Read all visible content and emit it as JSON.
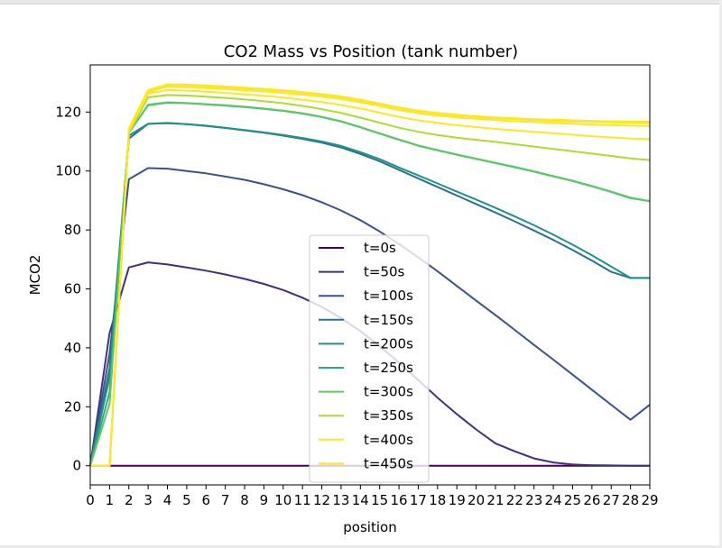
{
  "chart_data": {
    "type": "line",
    "title": "CO2 Mass vs Position (tank number)",
    "xlabel": "position",
    "ylabel": "MCO2",
    "xlim": [
      0,
      29
    ],
    "ylim": [
      -6.5,
      136
    ],
    "x": [
      0,
      1,
      2,
      3,
      4,
      5,
      6,
      7,
      8,
      9,
      10,
      11,
      12,
      13,
      14,
      15,
      16,
      17,
      18,
      19,
      20,
      21,
      22,
      23,
      24,
      25,
      26,
      27,
      28,
      29
    ],
    "x_tick_labels": [
      "0",
      "1",
      "2",
      "3",
      "4",
      "5",
      "6",
      "7",
      "8",
      "9",
      "10",
      "11",
      "12",
      "13",
      "14",
      "15",
      "16",
      "17",
      "18",
      "19",
      "20",
      "21",
      "22",
      "23",
      "24",
      "25",
      "26",
      "27",
      "28",
      "29"
    ],
    "y_ticks": [
      0,
      20,
      40,
      60,
      80,
      100,
      120
    ],
    "grid": false,
    "legend_placement": "lower center",
    "series": [
      {
        "name": "t=0s",
        "color": "#440154",
        "values": [
          0,
          0,
          0,
          0,
          0,
          0,
          0,
          0,
          0,
          0,
          0,
          0,
          0,
          0,
          0,
          0,
          0,
          0,
          0,
          0,
          0,
          0,
          0,
          0,
          0,
          0,
          0,
          0,
          0,
          0
        ]
      },
      {
        "name": "t=50s",
        "color": "#472d7b",
        "values": [
          0,
          45,
          67.3,
          69,
          68.3,
          67.3,
          66.2,
          64.9,
          63.4,
          61.7,
          59.6,
          57,
          53.9,
          50.1,
          45.7,
          40.6,
          35,
          29.1,
          23.1,
          17.5,
          12.3,
          7.6,
          4.9,
          2.5,
          1.1,
          0.4,
          0.2,
          0.1,
          0,
          0
        ]
      },
      {
        "name": "t=100s",
        "color": "#3b528b",
        "values": [
          0,
          38,
          97.2,
          101,
          100.8,
          100,
          99.2,
          98.1,
          97,
          95.5,
          93.8,
          91.8,
          89.4,
          86.6,
          83.3,
          79.5,
          75.2,
          70.7,
          66,
          61,
          56,
          51.1,
          46.1,
          41,
          36,
          30.9,
          25.8,
          20.7,
          15.6,
          20.7
        ]
      },
      {
        "name": "t=150s",
        "color": "#2c728e",
        "values": [
          0,
          33,
          111,
          116,
          116.3,
          115.9,
          115.3,
          114.6,
          113.8,
          113,
          112,
          110.9,
          109.6,
          108,
          105.8,
          103.3,
          100.4,
          97.5,
          94.6,
          91.7,
          88.8,
          85.9,
          82.9,
          79.8,
          76.6,
          73.2,
          69.6,
          65.8,
          63.7,
          63.7
        ]
      },
      {
        "name": "t=200s",
        "color": "#21918c",
        "values": [
          0,
          30,
          112,
          116,
          116.2,
          115.9,
          115.4,
          114.7,
          113.9,
          113.1,
          112.2,
          111.2,
          110,
          108.5,
          106.4,
          104,
          101.2,
          98.5,
          95.8,
          93,
          90.3,
          87.5,
          84.6,
          81.6,
          78.4,
          75,
          71.4,
          67.6,
          63.7,
          63.7
        ]
      },
      {
        "name": "t=250s",
        "color": "#28ae80",
        "values": [
          0,
          25,
          113,
          122.3,
          123.2,
          123,
          122.6,
          122.2,
          121.7,
          121.1,
          120.4,
          119.5,
          118.3,
          116.8,
          114.8,
          112.7,
          110.6,
          108.6,
          107,
          105.5,
          104.1,
          102.7,
          101.3,
          99.8,
          98.2,
          96.6,
          94.8,
          92.9,
          90.8,
          89.8
        ]
      },
      {
        "name": "t=300s",
        "color": "#5ec962",
        "values": [
          0,
          21,
          113,
          122.5,
          123.3,
          123.1,
          122.7,
          122.3,
          121.8,
          121.2,
          120.5,
          119.6,
          118.4,
          116.9,
          114.9,
          112.8,
          110.7,
          108.7,
          107.1,
          105.6,
          104.2,
          102.8,
          101.4,
          99.9,
          98.3,
          96.7,
          94.9,
          93,
          91,
          89.8
        ]
      },
      {
        "name": "t=350s",
        "color": "#addc30",
        "values": [
          0,
          0,
          113,
          125,
          125.8,
          125.6,
          125.2,
          124.8,
          124.3,
          123.7,
          123,
          122.1,
          121,
          119.7,
          118.1,
          116.4,
          114.7,
          113.3,
          112.2,
          111.3,
          110.6,
          109.9,
          109.1,
          108.3,
          107.5,
          106.7,
          105.9,
          105.1,
          104.3,
          103.7
        ]
      },
      {
        "name": "t=400s",
        "color": "#fde725",
        "values": [
          0,
          0,
          113.5,
          126.2,
          127.5,
          127.3,
          126.9,
          126.5,
          126,
          125.5,
          124.9,
          124.2,
          123.4,
          122.4,
          121.2,
          119.8,
          118.4,
          117.2,
          116.3,
          115.5,
          114.9,
          114.3,
          113.8,
          113.3,
          112.8,
          112.3,
          111.8,
          111.4,
          111,
          110.8
        ]
      },
      {
        "name": "t=450s",
        "color": "#fde725",
        "values": [
          0,
          0,
          114,
          126.8,
          128.6,
          128.4,
          128.1,
          127.8,
          127.4,
          127,
          126.5,
          125.9,
          125.2,
          124.4,
          123.3,
          122,
          120.7,
          119.6,
          118.8,
          118.2,
          117.7,
          117.3,
          116.9,
          116.6,
          116.3,
          116,
          115.8,
          115.6,
          115.4,
          115.3
        ]
      }
    ],
    "extra_series_overlay": [
      {
        "color": "#fde725",
        "values": [
          0,
          0,
          114.3,
          127.2,
          129.1,
          129,
          128.7,
          128.4,
          128,
          127.6,
          127.1,
          126.5,
          125.8,
          125,
          123.9,
          122.6,
          121.3,
          120.2,
          119.4,
          118.8,
          118.3,
          117.9,
          117.6,
          117.3,
          117,
          116.8,
          116.6,
          116.5,
          116.3,
          116.2
        ]
      },
      {
        "color": "#fde725",
        "values": [
          0,
          0,
          114.5,
          127.5,
          129.4,
          129.3,
          129,
          128.7,
          128.3,
          127.9,
          127.4,
          126.8,
          126.1,
          125.3,
          124.2,
          122.9,
          121.6,
          120.5,
          119.7,
          119.1,
          118.6,
          118.2,
          117.9,
          117.6,
          117.4,
          117.2,
          117,
          116.9,
          116.8,
          116.7
        ]
      }
    ]
  }
}
